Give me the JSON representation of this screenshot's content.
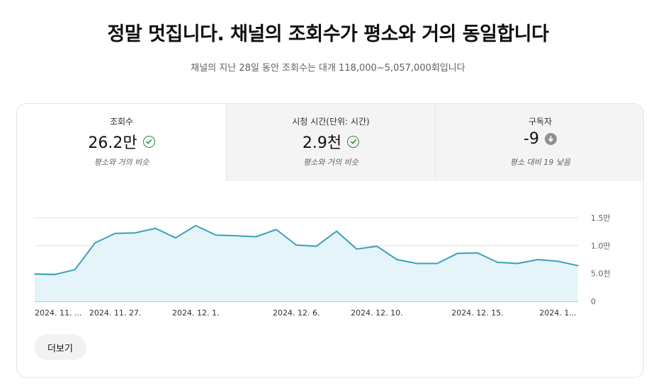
{
  "headline": "정말 멋집니다. 채널의 조회수가 평소와 거의 동일합니다",
  "subhead": "채널의 지난 28일 동안 조회수는 대개 118,000~5,057,000회입니다",
  "metrics": [
    {
      "label": "조회수",
      "value": "26.2만",
      "status": "평소와 거의 비슷",
      "icon": "check-circle-icon"
    },
    {
      "label": "시청 시간(단위: 시간)",
      "value": "2.9천",
      "status": "평소와 거의 비슷",
      "icon": "check-circle-icon"
    },
    {
      "label": "구독자",
      "value": "-9",
      "status": "평소 대비 19 낮음",
      "icon": "arrow-down-circle-icon"
    }
  ],
  "colors": {
    "line": "#3aa0ba",
    "area": "#e4f4f9",
    "ok": "#2b8a3e",
    "down": "#909090"
  },
  "more_button": "더보기",
  "chart_data": {
    "type": "area",
    "title": "",
    "xlabel": "",
    "ylabel": "",
    "ylim": [
      0,
      15000
    ],
    "y_ticks": [
      {
        "value": 0,
        "label": "0"
      },
      {
        "value": 5000,
        "label": "5.0천"
      },
      {
        "value": 10000,
        "label": "1.0만"
      },
      {
        "value": 15000,
        "label": "1.5만"
      }
    ],
    "x_tick_labels": [
      {
        "index": 0,
        "label": "2024. 11. ..."
      },
      {
        "index": 4,
        "label": "2024. 11. 27."
      },
      {
        "index": 8,
        "label": "2024. 12. 1."
      },
      {
        "index": 13,
        "label": "2024. 12. 6."
      },
      {
        "index": 17,
        "label": "2024. 12. 10."
      },
      {
        "index": 22,
        "label": "2024. 12. 15."
      },
      {
        "index": 26,
        "label": "2024. 1..."
      }
    ],
    "series": [
      {
        "values": [
          4900,
          4800,
          5700,
          10500,
          12200,
          12300,
          13100,
          11400,
          13600,
          11900,
          11800,
          11600,
          12900,
          10100,
          9900,
          12600,
          9400,
          9900,
          7500,
          6800,
          6800,
          8600,
          8700,
          7000,
          6800,
          7500,
          7200,
          6400
        ]
      }
    ]
  }
}
